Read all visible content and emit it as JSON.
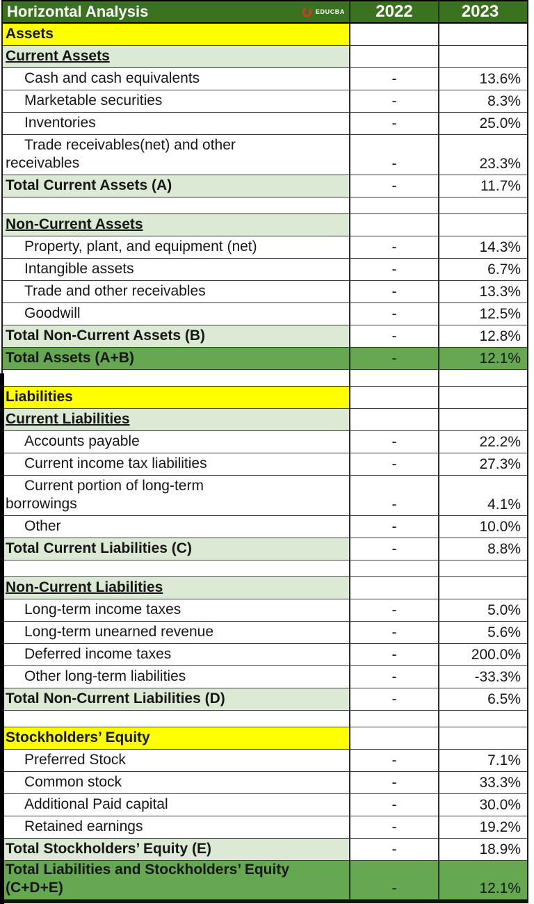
{
  "header": {
    "title": "Horizontal Analysis",
    "logo_text": "EDUCBA",
    "col_2022": "2022",
    "col_2023": "2023"
  },
  "rows": [
    {
      "type": "section-yellow",
      "lines": [
        "Assets"
      ],
      "v22": "",
      "v23": ""
    },
    {
      "type": "section-green",
      "lines": [
        "Current Assets"
      ],
      "v22": "",
      "v23": ""
    },
    {
      "type": "item",
      "lines": [
        "Cash and cash equivalents"
      ],
      "v22": "-",
      "v23": "13.6%"
    },
    {
      "type": "item",
      "lines": [
        "Marketable securities"
      ],
      "v22": "-",
      "v23": "8.3%"
    },
    {
      "type": "item",
      "lines": [
        "Inventories"
      ],
      "v22": "-",
      "v23": "25.0%"
    },
    {
      "type": "item-tall",
      "lines": [
        "Trade receivables(net) and other",
        "receivables"
      ],
      "v22": "-",
      "v23": "23.3%"
    },
    {
      "type": "total",
      "lines": [
        "Total Current Assets (A)"
      ],
      "v22": "-",
      "v23": "11.7%"
    },
    {
      "type": "empty",
      "lines": [],
      "v22": "",
      "v23": ""
    },
    {
      "type": "section-green",
      "lines": [
        "Non-Current Assets"
      ],
      "v22": "",
      "v23": ""
    },
    {
      "type": "item",
      "lines": [
        "Property, plant, and equipment (net)"
      ],
      "v22": "-",
      "v23": "14.3%"
    },
    {
      "type": "item",
      "lines": [
        "Intangible assets"
      ],
      "v22": "-",
      "v23": "6.7%"
    },
    {
      "type": "item",
      "lines": [
        "Trade and other receivables"
      ],
      "v22": "-",
      "v23": "13.3%"
    },
    {
      "type": "item",
      "lines": [
        "Goodwill"
      ],
      "v22": "-",
      "v23": "12.5%"
    },
    {
      "type": "total",
      "lines": [
        "Total Non-Current Assets (B)"
      ],
      "v22": "-",
      "v23": "12.8%"
    },
    {
      "type": "grand",
      "lines": [
        "Total Assets (A+B)"
      ],
      "v22": "-",
      "v23": "12.1%"
    },
    {
      "type": "empty",
      "lines": [],
      "v22": "",
      "v23": ""
    },
    {
      "type": "section-yellow",
      "lines": [
        "Liabilities"
      ],
      "v22": "",
      "v23": ""
    },
    {
      "type": "section-green",
      "lines": [
        "Current Liabilities"
      ],
      "v22": "",
      "v23": ""
    },
    {
      "type": "item",
      "lines": [
        "Accounts payable"
      ],
      "v22": "-",
      "v23": "22.2%"
    },
    {
      "type": "item",
      "lines": [
        "Current income tax liabilities"
      ],
      "v22": "-",
      "v23": "27.3%"
    },
    {
      "type": "item-tall",
      "lines": [
        "Current portion of long-term",
        "borrowings"
      ],
      "v22": "-",
      "v23": "4.1%"
    },
    {
      "type": "item",
      "lines": [
        "Other"
      ],
      "v22": "-",
      "v23": "10.0%"
    },
    {
      "type": "total",
      "lines": [
        "Total Current Liabilities (C)"
      ],
      "v22": "-",
      "v23": "8.8%"
    },
    {
      "type": "empty",
      "lines": [],
      "v22": "",
      "v23": ""
    },
    {
      "type": "section-green",
      "lines": [
        "Non-Current Liabilities"
      ],
      "v22": "",
      "v23": ""
    },
    {
      "type": "item",
      "lines": [
        "Long-term income taxes"
      ],
      "v22": "-",
      "v23": "5.0%"
    },
    {
      "type": "item",
      "lines": [
        "Long-term unearned revenue"
      ],
      "v22": "-",
      "v23": "5.6%"
    },
    {
      "type": "item",
      "lines": [
        "Deferred income taxes"
      ],
      "v22": "-",
      "v23": "200.0%"
    },
    {
      "type": "item",
      "lines": [
        "Other long-term liabilities"
      ],
      "v22": "-",
      "v23": "-33.3%"
    },
    {
      "type": "total",
      "lines": [
        "Total Non-Current Liabilities (D)"
      ],
      "v22": "-",
      "v23": "6.5%"
    },
    {
      "type": "empty",
      "lines": [],
      "v22": "",
      "v23": ""
    },
    {
      "type": "section-yellow",
      "lines": [
        "Stockholders’ Equity"
      ],
      "v22": "",
      "v23": ""
    },
    {
      "type": "item",
      "lines": [
        "Preferred Stock"
      ],
      "v22": "-",
      "v23": "7.1%"
    },
    {
      "type": "item",
      "lines": [
        "Common stock"
      ],
      "v22": "-",
      "v23": "33.3%"
    },
    {
      "type": "item",
      "lines": [
        "Additional Paid capital"
      ],
      "v22": "-",
      "v23": "30.0%"
    },
    {
      "type": "item",
      "lines": [
        "Retained earnings"
      ],
      "v22": "-",
      "v23": "19.2%"
    },
    {
      "type": "total",
      "lines": [
        "Total Stockholders’ Equity (E)"
      ],
      "v22": "-",
      "v23": "18.9%"
    },
    {
      "type": "grand-tall",
      "lines": [
        "Total Liabilities and Stockholders’ Equity",
        "(C+D+E)"
      ],
      "v22": "-",
      "v23": "12.1%"
    }
  ],
  "colors": {
    "header-green": "#3b721f",
    "band-green": "#66a852",
    "light-green": "#dce9d4",
    "highlight-yellow": "#ffff00",
    "logo-red": "#e3302b",
    "grid": "#3a3a3a",
    "text": "#161616",
    "header-text": "#ffffff"
  }
}
